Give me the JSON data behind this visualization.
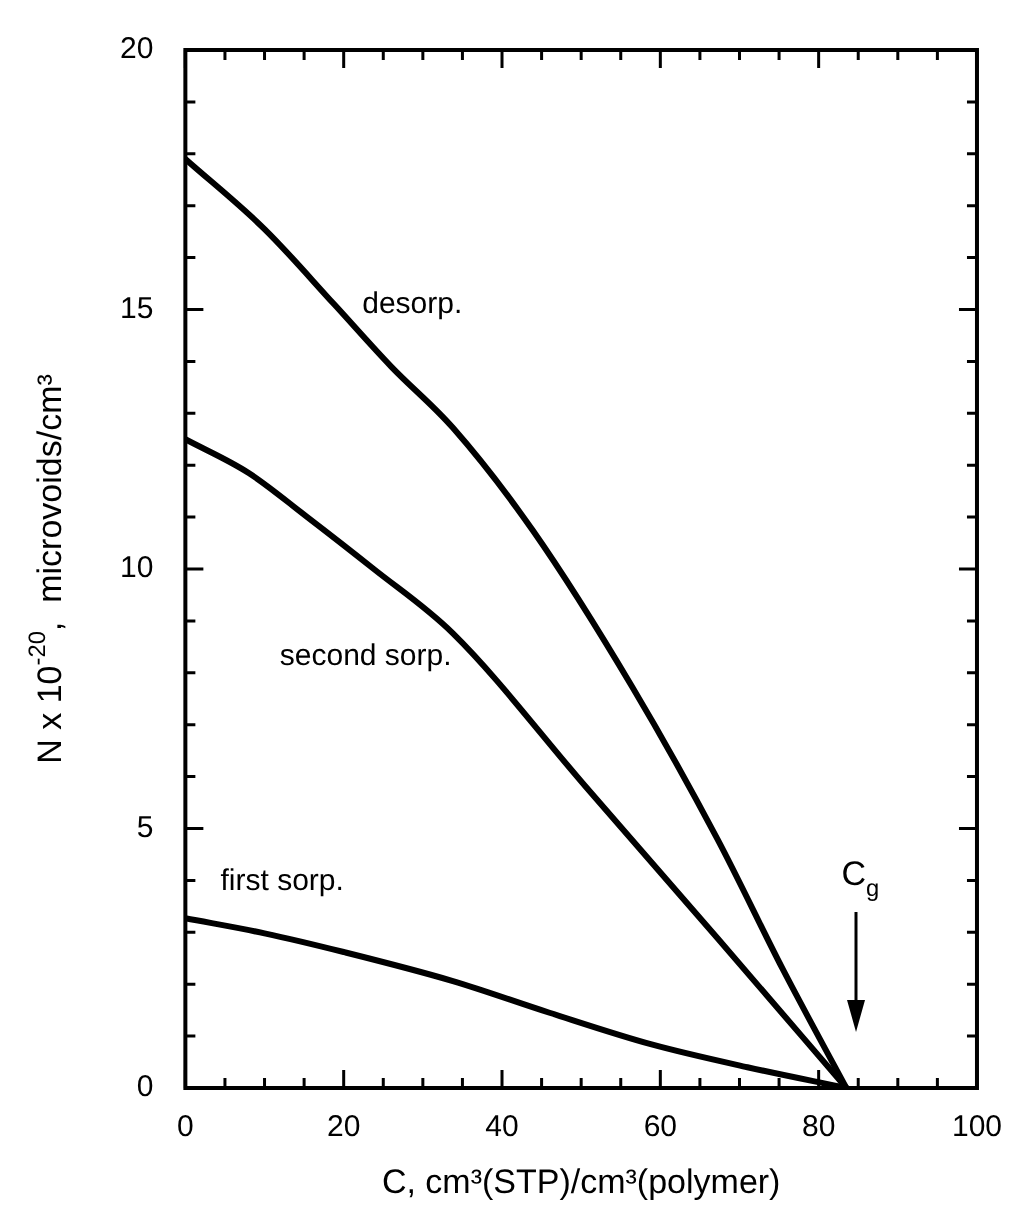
{
  "chart_data": {
    "type": "line",
    "xlabel": "C, cm³(STP)/cm³(polymer)",
    "ylabel": "N x 10$^{-20}$,  microvoids/cm³",
    "xlim": [
      0,
      100
    ],
    "ylim": [
      0,
      20
    ],
    "xticks": [
      0,
      {
        "value": 5,
        "label": null
      },
      {
        "value": 10,
        "label": null
      },
      {
        "value": 15,
        "label": null
      },
      20,
      {
        "value": 25,
        "label": null
      },
      {
        "value": 30,
        "label": null
      },
      {
        "value": 35,
        "label": null
      },
      40,
      {
        "value": 45,
        "label": null
      },
      {
        "value": 50,
        "label": null
      },
      {
        "value": 55,
        "label": null
      },
      60,
      {
        "value": 65,
        "label": null
      },
      {
        "value": 70,
        "label": null
      },
      {
        "value": 75,
        "label": null
      },
      80,
      {
        "value": 85,
        "label": null
      },
      {
        "value": 90,
        "label": null
      },
      {
        "value": 95,
        "label": null
      },
      100
    ],
    "yticks": [
      0,
      {
        "value": 1,
        "label": null
      },
      {
        "value": 2,
        "label": null
      },
      {
        "value": 3,
        "label": null
      },
      {
        "value": 4,
        "label": null
      },
      5,
      {
        "value": 6,
        "label": null
      },
      {
        "value": 7,
        "label": null
      },
      {
        "value": 8,
        "label": null
      },
      {
        "value": 9,
        "label": null
      },
      10,
      {
        "value": 11,
        "label": null
      },
      {
        "value": 12,
        "label": null
      },
      {
        "value": 13,
        "label": null
      },
      {
        "value": 14,
        "label": null
      },
      15,
      {
        "value": 16,
        "label": null
      },
      {
        "value": 17,
        "label": null
      },
      {
        "value": 18,
        "label": null
      },
      {
        "value": 19,
        "label": null
      },
      20
    ],
    "grid": false,
    "legend": false,
    "marker": "none",
    "line_style": "solid",
    "series": [
      {
        "name": "desorp.",
        "color": "#000000",
        "x": [
          0,
          10,
          18.8,
          26,
          33.8,
          43.9,
          56.4,
          67.2,
          75.6,
          83.5
        ],
        "values": [
          17.9,
          16.55,
          15.1,
          13.9,
          12.72,
          10.74,
          7.74,
          4.8,
          2.25,
          0
        ]
      },
      {
        "name": "second sorp.",
        "color": "#000000",
        "x": [
          0,
          8,
          15.4,
          23.8,
          33.8,
          50.5,
          67.2,
          83.5
        ],
        "values": [
          12.5,
          11.85,
          11.0,
          10.0,
          8.76,
          5.82,
          2.89,
          0
        ]
      },
      {
        "name": "first sorp.",
        "color": "#000000",
        "x": [
          0,
          10,
          20,
          33.8,
          46,
          58.9,
          71,
          83.5
        ],
        "values": [
          3.27,
          2.98,
          2.62,
          2.06,
          1.45,
          0.84,
          0.4,
          0
        ]
      }
    ],
    "annotations": [
      "C$_{g}$"
    ]
  }
}
